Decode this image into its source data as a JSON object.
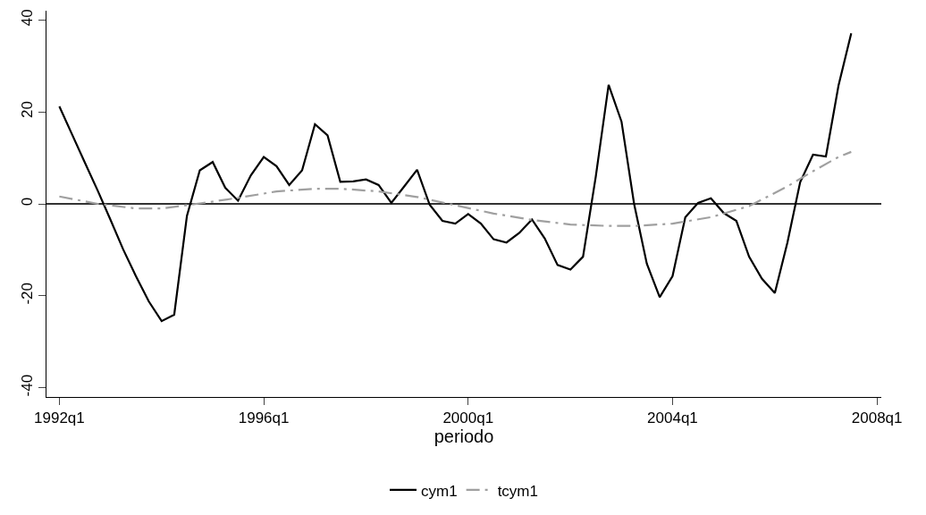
{
  "chart_data": {
    "type": "line",
    "xlabel": "periodo",
    "x": [
      "1992-01",
      "1992-04",
      "1992-07",
      "1992-10",
      "1993-01",
      "1993-04",
      "1993-07",
      "1993-10",
      "1994-01",
      "1994-04",
      "1994-07",
      "1994-10",
      "1995-01",
      "1995-04",
      "1995-07",
      "1995-10",
      "1996-01",
      "1996-04",
      "1996-07",
      "1996-10",
      "1997-01",
      "1997-04",
      "1997-07",
      "1997-10",
      "1998-01",
      "1998-04",
      "1998-07",
      "1998-10",
      "1999-01",
      "1999-04",
      "1999-07",
      "1999-10",
      "2000-01",
      "2000-04",
      "2000-07",
      "2000-10",
      "2001-01",
      "2001-04",
      "2001-07",
      "2001-10",
      "2002-01",
      "2002-04",
      "2002-07",
      "2002-10",
      "2003-01",
      "2003-04",
      "2003-07",
      "2003-10",
      "2004-01",
      "2004-04",
      "2004-07",
      "2004-10",
      "2005-01",
      "2005-04",
      "2005-07",
      "2005-10",
      "2006-01",
      "2006-04",
      "2006-07",
      "2006-10",
      "2007-01",
      "2007-04",
      "2007-07"
    ],
    "series": [
      {
        "name": "cym1",
        "color": "#000000",
        "line_style": "solid",
        "values": [
          21.2,
          15.1,
          9.0,
          2.9,
          -3.5,
          -9.9,
          -15.7,
          -21.2,
          -25.5,
          -24.1,
          -2.6,
          7.3,
          9.1,
          3.5,
          0.7,
          6.2,
          10.2,
          8.2,
          4.1,
          7.3,
          17.3,
          14.9,
          4.8,
          4.9,
          5.3,
          4.1,
          0.2,
          3.8,
          7.4,
          -0.2,
          -3.7,
          -4.3,
          -2.2,
          -4.3,
          -7.7,
          -8.4,
          -6.3,
          -3.4,
          -7.5,
          -13.3,
          -14.3,
          -11.5,
          5.9,
          25.9,
          17.9,
          0.0,
          -13.0,
          -20.3,
          -15.7,
          -2.9,
          0.2,
          1.2,
          -2.0,
          -3.7,
          -11.5,
          -16.3,
          -19.4,
          -8.4,
          4.7,
          10.7,
          10.3,
          25.7,
          37.1
        ]
      },
      {
        "name": "tcym1",
        "color": "#a0a0a0",
        "line_style": "dashdot",
        "x": [
          "1992-01",
          "1992-10",
          "1993-07",
          "1994-01",
          "1994-10",
          "1995-07",
          "1996-04",
          "1997-01",
          "1997-07",
          "1998-04",
          "1999-01",
          "1999-10",
          "2000-07",
          "2001-04",
          "2002-01",
          "2002-10",
          "2003-04",
          "2004-01",
          "2004-10",
          "2005-07",
          "2006-04",
          "2006-10",
          "2007-04",
          "2007-07"
        ],
        "values": [
          1.6,
          0.0,
          -1.0,
          -1.0,
          0.1,
          1.3,
          2.7,
          3.3,
          3.3,
          2.7,
          1.5,
          -0.3,
          -2.1,
          -3.5,
          -4.5,
          -4.8,
          -4.8,
          -4.3,
          -2.9,
          -0.5,
          3.8,
          7.1,
          10.2,
          11.3
        ]
      }
    ],
    "xlim": [
      "1991-10",
      "2008-02"
    ],
    "xticks": [
      {
        "value": "1992-01",
        "label": "1992q1"
      },
      {
        "value": "1996-01",
        "label": "1996q1"
      },
      {
        "value": "2000-01",
        "label": "2000q1"
      },
      {
        "value": "2004-01",
        "label": "2004q1"
      },
      {
        "value": "2008-01",
        "label": "2008q1"
      }
    ],
    "ylim": [
      -42,
      42
    ],
    "yticks": [
      -40,
      -20,
      0,
      20,
      40
    ],
    "ref_lines": [
      {
        "axis": "y",
        "value": 0,
        "color": "#333333"
      }
    ],
    "grid": false,
    "legend": "bottom",
    "marker": "none"
  }
}
